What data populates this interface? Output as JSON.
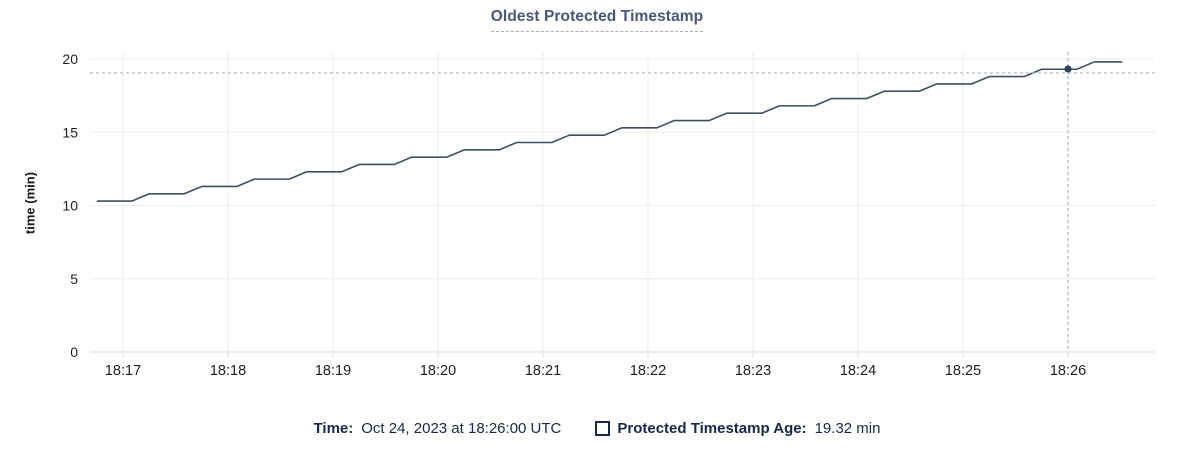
{
  "title": "Oldest Protected Timestamp",
  "tooltip": {
    "time_label": "Time:",
    "time_value": "Oct 24, 2023 at 18:26:00 UTC",
    "series_label": "Protected Timestamp Age:",
    "series_value": "19.32 min"
  },
  "colors": {
    "navy": "#16294d",
    "title": "#47587a",
    "line": "#3f4f69",
    "dot": "#32415a",
    "crosshair": "#a3bac9",
    "grid": "#ececec",
    "axis_line": "#d9d9d9",
    "axis_text": "#1f1f1f"
  },
  "chart_data": {
    "type": "line",
    "title": "Oldest Protected Timestamp",
    "xlabel": "",
    "ylabel": "time (min)",
    "ylim": [
      0,
      20
    ],
    "y_ticks": [
      0,
      5,
      10,
      15,
      20
    ],
    "x_tick_labels": [
      "18:17",
      "18:18",
      "18:19",
      "18:20",
      "18:21",
      "18:22",
      "18:23",
      "18:24",
      "18:25",
      "18:26"
    ],
    "x_start_time": "18:16:45",
    "x_tick_first_offset_sec": 15,
    "x_tick_interval_sec": 60,
    "grid": true,
    "legend_position": "bottom",
    "series": [
      {
        "name": "Protected Timestamp Age",
        "unit": "min",
        "points": [
          [
            0,
            10.3
          ],
          [
            20,
            10.3
          ],
          [
            30,
            10.8
          ],
          [
            50,
            10.8
          ],
          [
            60,
            11.3
          ],
          [
            80,
            11.3
          ],
          [
            90,
            11.8
          ],
          [
            110,
            11.8
          ],
          [
            120,
            12.3
          ],
          [
            140,
            12.3
          ],
          [
            150,
            12.8
          ],
          [
            170,
            12.8
          ],
          [
            180,
            13.3
          ],
          [
            200,
            13.3
          ],
          [
            210,
            13.8
          ],
          [
            230,
            13.8
          ],
          [
            240,
            14.3
          ],
          [
            260,
            14.3
          ],
          [
            270,
            14.8
          ],
          [
            290,
            14.8
          ],
          [
            300,
            15.3
          ],
          [
            320,
            15.3
          ],
          [
            330,
            15.8
          ],
          [
            350,
            15.8
          ],
          [
            360,
            16.3
          ],
          [
            380,
            16.3
          ],
          [
            390,
            16.8
          ],
          [
            410,
            16.8
          ],
          [
            420,
            17.3
          ],
          [
            440,
            17.3
          ],
          [
            450,
            17.8
          ],
          [
            470,
            17.8
          ],
          [
            480,
            18.3
          ],
          [
            500,
            18.3
          ],
          [
            510,
            18.8
          ],
          [
            530,
            18.8
          ],
          [
            540,
            19.3
          ],
          [
            560,
            19.3
          ],
          [
            570,
            19.8
          ],
          [
            586,
            19.8
          ]
        ]
      }
    ],
    "highlight": {
      "time": "18:26:00",
      "offset_sec": 555,
      "value": 19.32
    },
    "crosshair": {
      "offset_sec": 555,
      "y_value": 19.05
    }
  }
}
